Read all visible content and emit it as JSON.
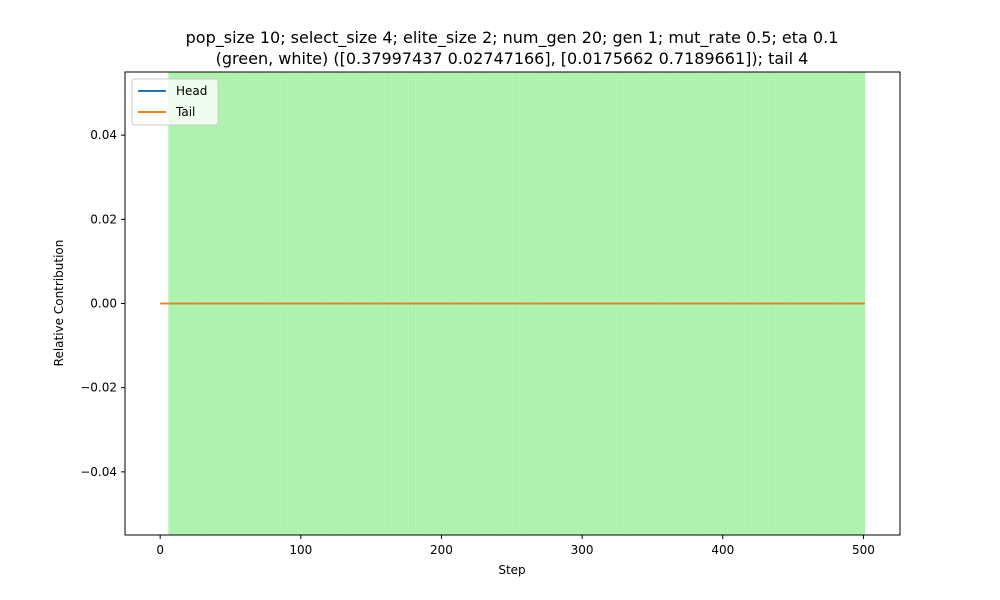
{
  "chart_data": {
    "type": "line",
    "title_lines": [
      "pop_size 10; select_size 4; elite_size 2; num_gen 20; gen 1; mut_rate 0.5; eta 0.1",
      "(green, white) ([0.37997437 0.02747166], [0.0175662 0.7189661]); tail 4"
    ],
    "xlabel": "Step",
    "ylabel": "Relative Contribution",
    "xlim": [
      -25,
      526
    ],
    "ylim": [
      -0.055,
      0.055
    ],
    "xticks": [
      0,
      100,
      200,
      300,
      400,
      500
    ],
    "xtick_labels": [
      "0",
      "100",
      "200",
      "300",
      "400",
      "500"
    ],
    "yticks": [
      -0.04,
      -0.02,
      0.0,
      0.02,
      0.04
    ],
    "ytick_labels": [
      "−0.04",
      "−0.02",
      "0.00",
      "0.02",
      "0.04"
    ],
    "shaded_region": {
      "x_start": 6,
      "x_end": 501,
      "color": "#b3f5b3",
      "label": "green"
    },
    "legend_position": "top-left",
    "series": [
      {
        "name": "Head",
        "color": "#1f77b4",
        "x": [
          0,
          501
        ],
        "values": [
          0.0,
          0.0
        ]
      },
      {
        "name": "Tail",
        "color": "#ff7f0e",
        "x": [
          0,
          501
        ],
        "values": [
          0.0,
          0.0
        ]
      }
    ]
  }
}
